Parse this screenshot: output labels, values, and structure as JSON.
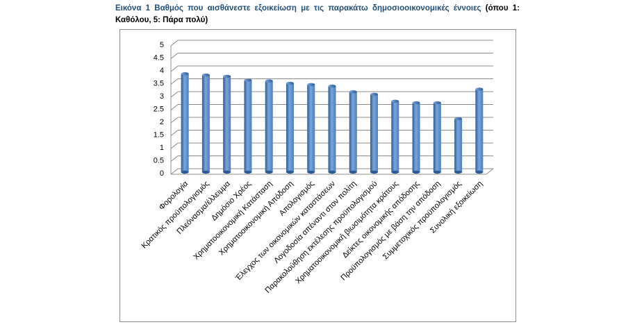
{
  "caption": {
    "prefix": "Εικόνα 1 Βαθμός που αισθάνεστε εξοικείωση με τις παρακάτω δημοσιοοικονομικές έννοιες",
    "suffix": " (όπου 1: Καθόλου, 5: Πάρα πολύ)"
  },
  "colors": {
    "bar": "#4a7ebb",
    "bar_dark": "#2c5a94",
    "bar_light": "#7aa6dc",
    "grid": "#8c8c8c",
    "caption_accent": "#1f4e79"
  },
  "chart_data": {
    "type": "bar",
    "title": "",
    "xlabel": "",
    "ylabel": "",
    "ylim": [
      0,
      5
    ],
    "yticks": [
      "0",
      "0.5",
      "1",
      "1.5",
      "2",
      "2.5",
      "3",
      "3.5",
      "4",
      "4.5",
      "5"
    ],
    "grid": true,
    "legend": "none",
    "categories": [
      "Φορολογία",
      "Κρατικός προϋπολογισμός",
      "Πλεόνασμα/έλλειμμα",
      "Δημόσιο Χρέος",
      "Χρηματοοικονομική Κατάσταση",
      "Χρηματοοικονομική Απόδοση",
      "Απολογισμός",
      "Έλεγχος των οικονομικών καταστάσεων",
      "Λογοδοσία απέναντι στον πολίτη",
      "Παρακολούθηση εκτέλεσης προϋπολογισμού",
      "Χρηματοοικονομική βιωσιμότητα κράτους",
      "Δείκτες οικονομικής απόδοσης",
      "Προϋπολογισμός με βάση την απόδοση",
      "Συμμετοχικός προϋπολογισμός",
      "Συνολική εξοικείωση"
    ],
    "values": [
      3.75,
      3.7,
      3.65,
      3.5,
      3.47,
      3.38,
      3.33,
      3.27,
      3.05,
      2.95,
      2.68,
      2.62,
      2.62,
      2.0,
      3.15
    ]
  }
}
